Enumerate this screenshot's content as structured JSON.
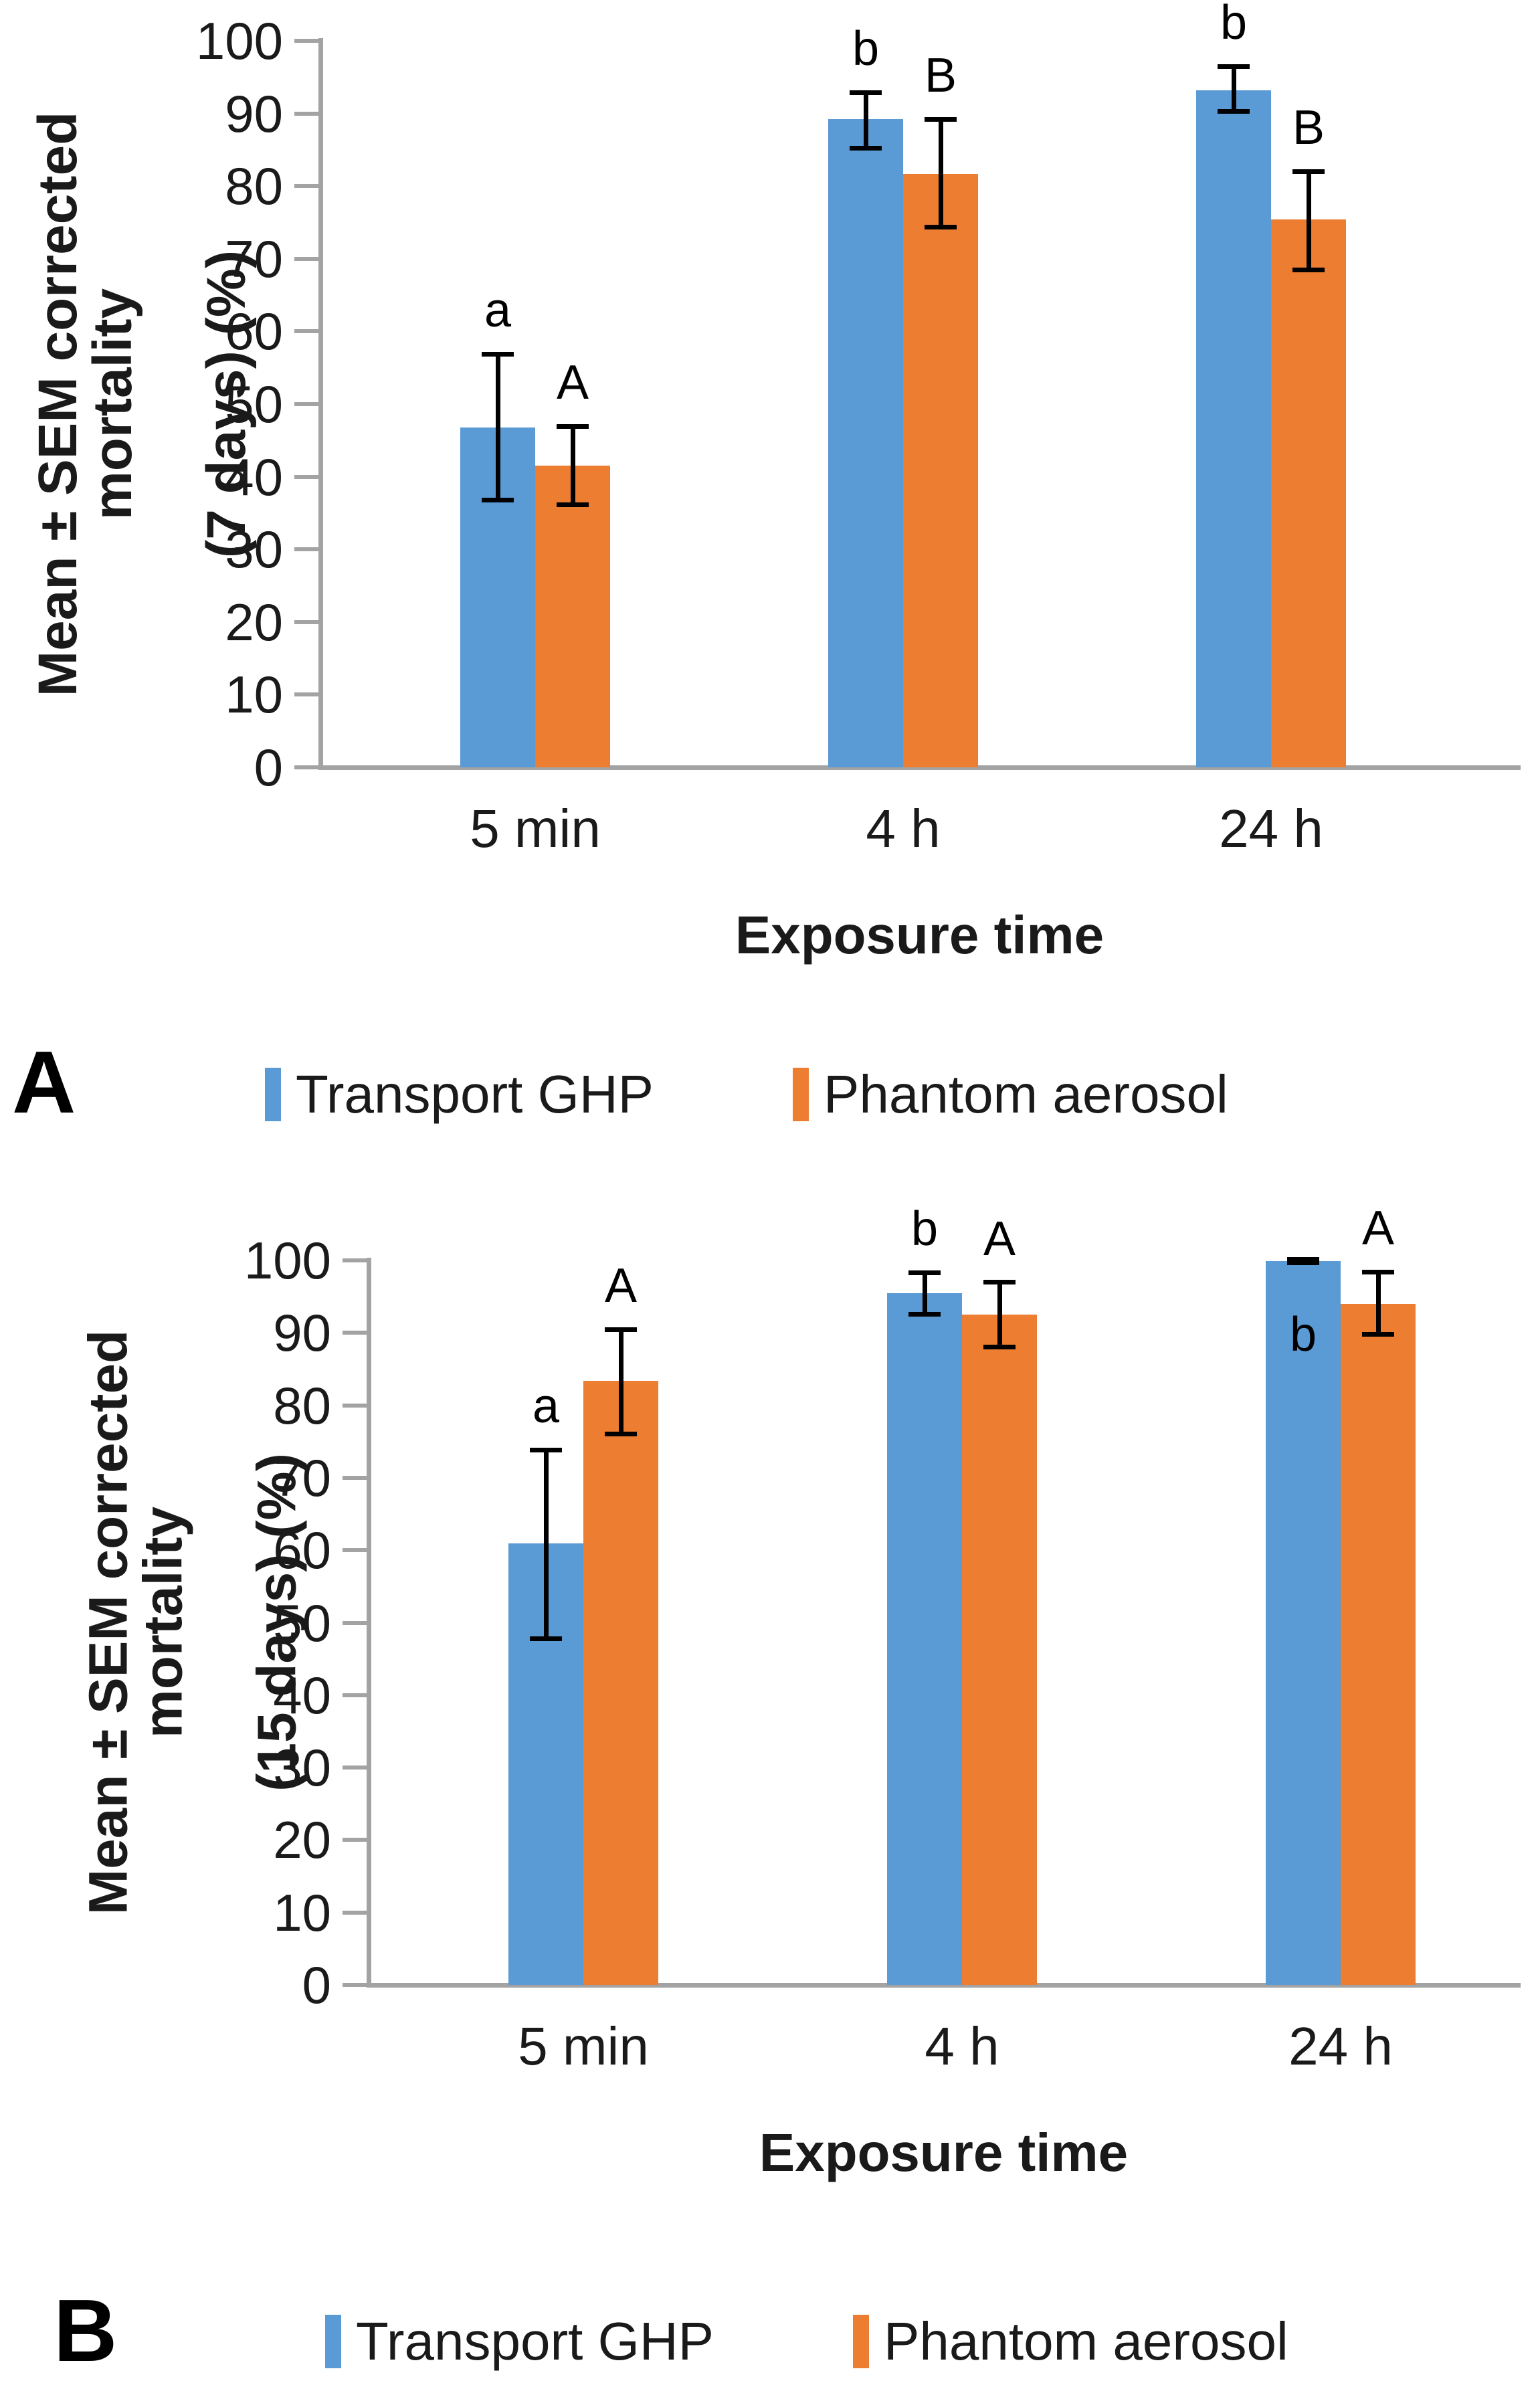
{
  "page": {
    "background": "#FFFFFF"
  },
  "colors": {
    "transport_ghp": "#5B9BD5",
    "phantom_aerosol": "#ED7D31",
    "axis": "#A3A3A3",
    "error_bar": "#000000",
    "text": "#1A1A1A"
  },
  "chart_data": [
    {
      "panel": "A",
      "type": "bar",
      "title": "",
      "xlabel": "Exposure time",
      "ylabel_line1": "Mean ± SEM corrected mortality",
      "ylabel_line2": "(7 days) (%)",
      "ylim": [
        0,
        100
      ],
      "ytick_step": 10,
      "grid": false,
      "legend_position": "bottom",
      "categories": [
        "5 min",
        "4 h",
        "24 h"
      ],
      "series": [
        {
          "name": "Transport GHP",
          "color": "#5B9BD5",
          "values": [
            46.8,
            89.2,
            93.2
          ],
          "err_low": [
            36.8,
            85.3,
            90.3
          ],
          "err_high": [
            56.9,
            92.9,
            96.5
          ],
          "sig_letters": [
            "a",
            "b",
            "b"
          ],
          "sig_inside": [
            false,
            false,
            false
          ]
        },
        {
          "name": "Phantom aerosol",
          "color": "#ED7D31",
          "values": [
            41.5,
            81.7,
            75.4
          ],
          "err_low": [
            36.2,
            74.4,
            68.5
          ],
          "err_high": [
            47.0,
            89.2,
            82.0
          ],
          "sig_letters": [
            "A",
            "B",
            "B"
          ],
          "sig_inside": [
            false,
            false,
            false
          ]
        }
      ]
    },
    {
      "panel": "B",
      "type": "bar",
      "title": "",
      "xlabel": "Exposure time",
      "ylabel_line1": "Mean ± SEM corrected mortality",
      "ylabel_line2": "(15 days) (%)",
      "ylim": [
        0,
        100
      ],
      "ytick_step": 10,
      "grid": false,
      "legend_position": "bottom",
      "categories": [
        "5 min",
        "4 h",
        "24 h"
      ],
      "series": [
        {
          "name": "Transport GHP",
          "color": "#5B9BD5",
          "values": [
            60.9,
            95.5,
            99.9
          ],
          "err_low": [
            47.8,
            92.6,
            99.7
          ],
          "err_high": [
            73.9,
            98.3,
            100.2
          ],
          "sig_letters": [
            "a",
            "b",
            "b"
          ],
          "sig_inside": [
            false,
            false,
            true
          ]
        },
        {
          "name": "Phantom aerosol",
          "color": "#ED7D31",
          "values": [
            83.4,
            92.5,
            94.0
          ],
          "err_low": [
            76.1,
            88.1,
            89.8
          ],
          "err_high": [
            90.5,
            97.0,
            98.4
          ],
          "sig_letters": [
            "A",
            "A",
            "A"
          ],
          "sig_inside": [
            false,
            false,
            false
          ]
        }
      ]
    }
  ]
}
